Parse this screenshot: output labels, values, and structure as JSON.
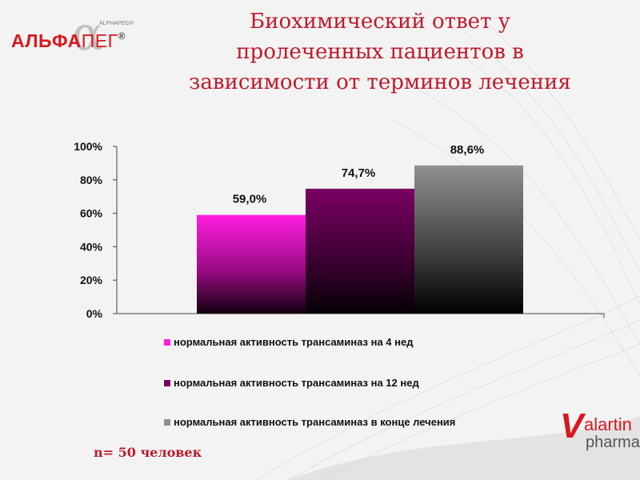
{
  "slide": {
    "title_line1": "Биохимический ответ у",
    "title_line2": "пролеченных пациентов в",
    "title_line3": "зависимости от терминов лечения",
    "footnote": "n= 50 человек"
  },
  "logos": {
    "left_main_part1": "АЛЬФА",
    "left_main_part2": "ПЕГ",
    "left_registered": "®",
    "left_sub": "ALPHAPEG®",
    "right_v": "V",
    "right_line1": "alartin",
    "right_line2": "pharma",
    "brand_color": "#d8191f"
  },
  "chart_data": {
    "type": "bar",
    "ylim": [
      0,
      100
    ],
    "yticks": [
      "0%",
      "20%",
      "40%",
      "60%",
      "80%",
      "100%"
    ],
    "categories": [
      ""
    ],
    "series": [
      {
        "name": "нормальная  активность трансаминаз на 4 нед",
        "values": [
          59.0
        ],
        "label": "59,0%",
        "color": "#ff1ee0"
      },
      {
        "name": "нормальная  активность трансаминаз на 12 нед",
        "values": [
          74.7
        ],
        "label": "74,7%",
        "color": "#7a0063"
      },
      {
        "name": "нормальная  активность трансаминаз в конце лечения",
        "values": [
          88.6
        ],
        "label": "88,6%",
        "color": "#8e8e8e"
      }
    ],
    "legend_position": "bottom",
    "grid": false
  }
}
